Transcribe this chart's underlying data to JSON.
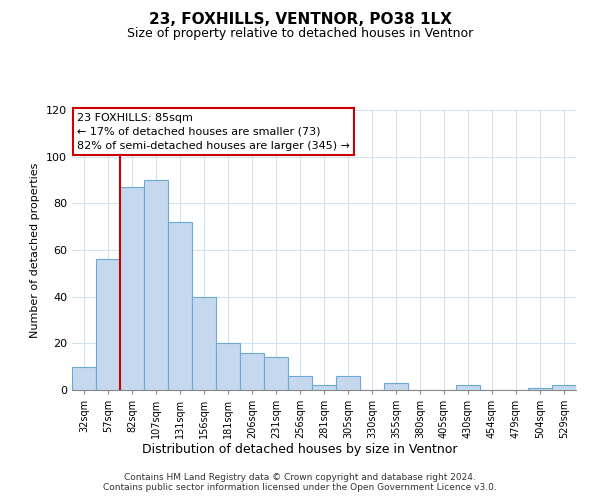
{
  "title": "23, FOXHILLS, VENTNOR, PO38 1LX",
  "subtitle": "Size of property relative to detached houses in Ventnor",
  "xlabel": "Distribution of detached houses by size in Ventnor",
  "ylabel": "Number of detached properties",
  "categories": [
    "32sqm",
    "57sqm",
    "82sqm",
    "107sqm",
    "131sqm",
    "156sqm",
    "181sqm",
    "206sqm",
    "231sqm",
    "256sqm",
    "281sqm",
    "305sqm",
    "330sqm",
    "355sqm",
    "380sqm",
    "405sqm",
    "430sqm",
    "454sqm",
    "479sqm",
    "504sqm",
    "529sqm"
  ],
  "values": [
    10,
    56,
    87,
    90,
    72,
    40,
    20,
    16,
    14,
    6,
    2,
    6,
    0,
    3,
    0,
    0,
    2,
    0,
    0,
    1,
    2
  ],
  "bar_color": "#c5d8ee",
  "bar_edge_color": "#6aaad4",
  "vline_x_index": 2,
  "vline_color": "#cc0000",
  "annotation_box_text": "23 FOXHILLS: 85sqm\n← 17% of detached houses are smaller (73)\n82% of semi-detached houses are larger (345) →",
  "box_edge_color": "#cc0000",
  "ylim": [
    0,
    120
  ],
  "yticks": [
    0,
    20,
    40,
    60,
    80,
    100,
    120
  ],
  "background_color": "#ffffff",
  "grid_color": "#d0e4f0",
  "footer_line1": "Contains HM Land Registry data © Crown copyright and database right 2024.",
  "footer_line2": "Contains public sector information licensed under the Open Government Licence v3.0."
}
